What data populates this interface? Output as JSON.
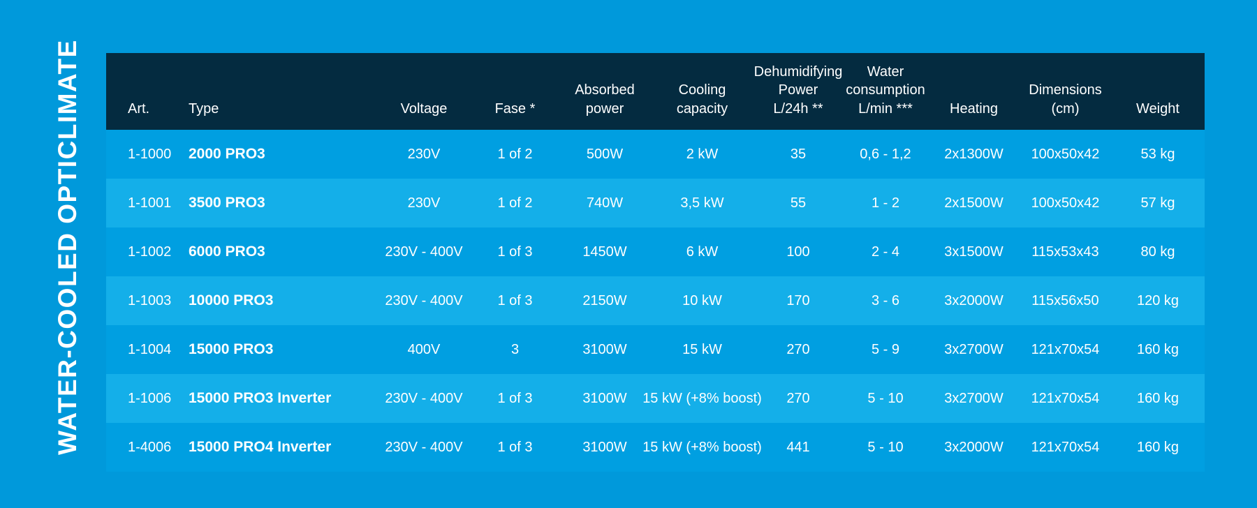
{
  "page": {
    "title": "WATER-COOLED OPTICLIMATE",
    "background_color": "#0099DB",
    "text_color": "#FFFFFF"
  },
  "table": {
    "header_bg_color": "#042B40",
    "row_odd_color": "#009FE1",
    "row_even_color": "#14AFE9",
    "columns": [
      {
        "key": "art",
        "label": "Art."
      },
      {
        "key": "type",
        "label": "Type"
      },
      {
        "key": "voltage",
        "label": "Voltage"
      },
      {
        "key": "fase",
        "label": "Fase *"
      },
      {
        "key": "absorbed_power",
        "label": "Absorbed\npower"
      },
      {
        "key": "cooling_capacity",
        "label": "Cooling\ncapacity"
      },
      {
        "key": "dehumidifying_power",
        "label": "Dehumidifying\nPower\nL/24h **"
      },
      {
        "key": "water_consumption",
        "label": "Water\nconsumption\nL/min ***"
      },
      {
        "key": "heating",
        "label": "Heating"
      },
      {
        "key": "dimensions",
        "label": "Dimensions (cm)"
      },
      {
        "key": "weight",
        "label": "Weight"
      }
    ],
    "rows": [
      {
        "art": "1-1000",
        "type": "2000 PRO3",
        "voltage": "230V",
        "fase": "1 of 2",
        "absorbed_power": "500W",
        "cooling_capacity": "2 kW",
        "dehumidifying_power": "35",
        "water_consumption": "0,6 - 1,2",
        "heating": "2x1300W",
        "dimensions": "100x50x42",
        "weight": "53 kg"
      },
      {
        "art": "1-1001",
        "type": "3500 PRO3",
        "voltage": "230V",
        "fase": "1 of 2",
        "absorbed_power": "740W",
        "cooling_capacity": "3,5 kW",
        "dehumidifying_power": "55",
        "water_consumption": "1 - 2",
        "heating": "2x1500W",
        "dimensions": "100x50x42",
        "weight": "57 kg"
      },
      {
        "art": "1-1002",
        "type": "6000 PRO3",
        "voltage": "230V - 400V",
        "fase": "1 of 3",
        "absorbed_power": "1450W",
        "cooling_capacity": "6 kW",
        "dehumidifying_power": "100",
        "water_consumption": "2 - 4",
        "heating": "3x1500W",
        "dimensions": "115x53x43",
        "weight": "80 kg"
      },
      {
        "art": "1-1003",
        "type": "10000 PRO3",
        "voltage": "230V - 400V",
        "fase": "1 of 3",
        "absorbed_power": "2150W",
        "cooling_capacity": "10 kW",
        "dehumidifying_power": "170",
        "water_consumption": "3 - 6",
        "heating": "3x2000W",
        "dimensions": "115x56x50",
        "weight": "120 kg"
      },
      {
        "art": "1-1004",
        "type": "15000 PRO3",
        "voltage": "400V",
        "fase": "3",
        "absorbed_power": "3100W",
        "cooling_capacity": "15 kW",
        "dehumidifying_power": "270",
        "water_consumption": "5 - 9",
        "heating": "3x2700W",
        "dimensions": "121x70x54",
        "weight": "160 kg"
      },
      {
        "art": "1-1006",
        "type": "15000 PRO3 Inverter",
        "voltage": "230V - 400V",
        "fase": "1 of 3",
        "absorbed_power": "3100W",
        "cooling_capacity": "15 kW (+8% boost)",
        "dehumidifying_power": "270",
        "water_consumption": "5 - 10",
        "heating": "3x2700W",
        "dimensions": "121x70x54",
        "weight": "160 kg"
      },
      {
        "art": "1-4006",
        "type": "15000 PRO4 Inverter",
        "voltage": "230V - 400V",
        "fase": "1 of 3",
        "absorbed_power": "3100W",
        "cooling_capacity": "15 kW (+8% boost)",
        "dehumidifying_power": "441",
        "water_consumption": "5 - 10",
        "heating": "3x2000W",
        "dimensions": "121x70x54",
        "weight": "160 kg"
      }
    ]
  }
}
